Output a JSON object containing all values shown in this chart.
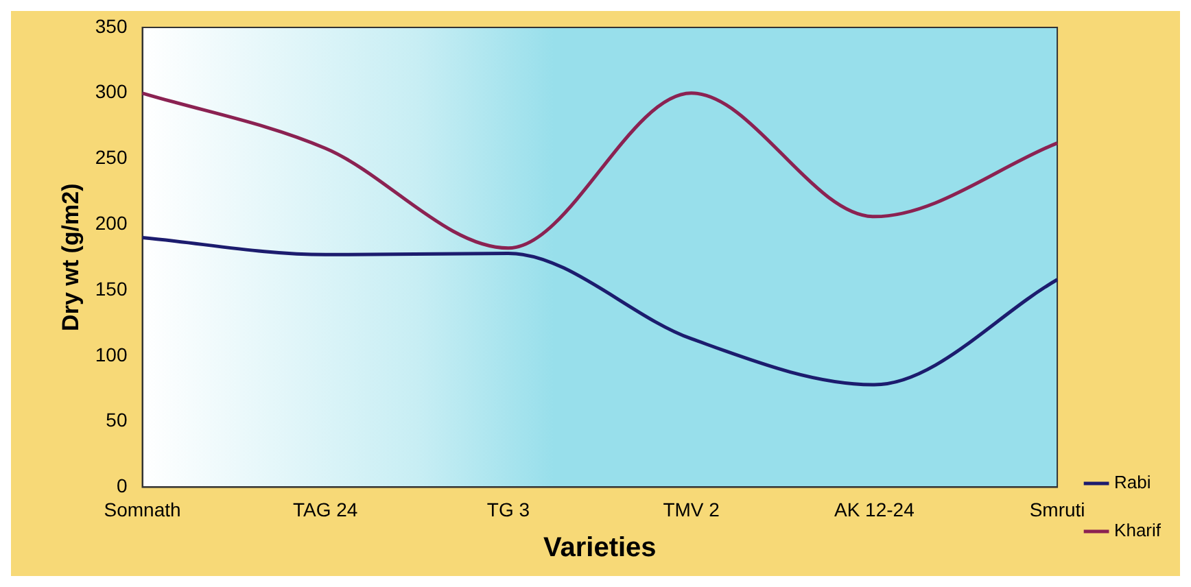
{
  "chart_data": {
    "type": "line",
    "xlabel": "Varieties",
    "ylabel": "Dry wt (g/m2)",
    "categories": [
      "Somnath",
      "TAG 24",
      "TG 3",
      "TMV 2",
      "AK 12-24",
      "Smruti"
    ],
    "series": [
      {
        "name": "Rabi",
        "color": "#1c1c6e",
        "values": [
          190,
          177,
          178,
          113,
          78,
          158
        ]
      },
      {
        "name": "Kharif",
        "color": "#8b2252",
        "values": [
          300,
          258,
          182,
          300,
          206,
          262
        ]
      }
    ],
    "ylim": [
      0,
      350
    ],
    "yticks": [
      0,
      50,
      100,
      150,
      200,
      250,
      300,
      350
    ],
    "grid": false,
    "legend": "bottom right",
    "marker": "none",
    "line_style": "solid"
  }
}
